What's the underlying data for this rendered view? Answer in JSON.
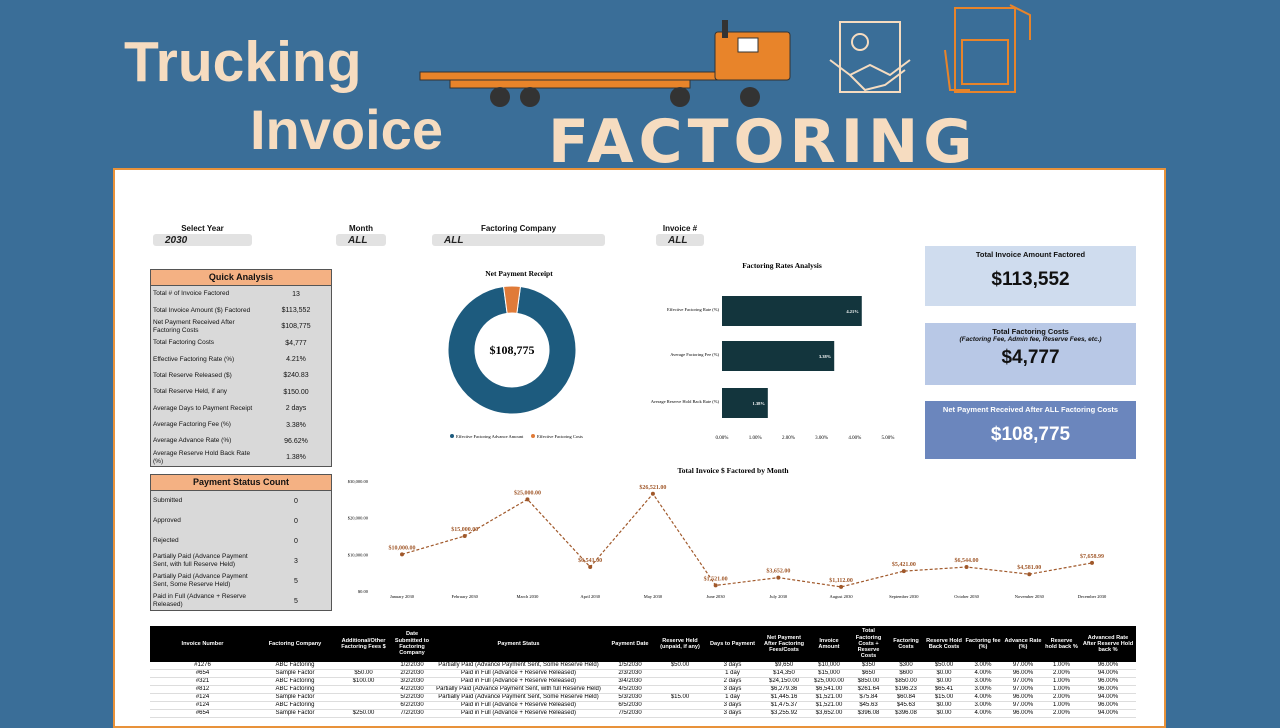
{
  "header": {
    "title_line1": "Trucking",
    "title_line2": "Invoice",
    "title_line3": "FACTORING"
  },
  "filters": [
    {
      "label": "Select Year",
      "value": "2030"
    },
    {
      "label": "Month",
      "value": "ALL"
    },
    {
      "label": "Factoring Company",
      "value": "ALL"
    },
    {
      "label": "Invoice #",
      "value": "ALL"
    }
  ],
  "quick_analysis": {
    "title": "Quick Analysis",
    "rows": [
      [
        "Total # of Invoice Factored",
        "13"
      ],
      [
        "Total Invoice Amount ($) Factored",
        "$113,552"
      ],
      [
        "Net Payment Received After Factoring Costs",
        "$108,775"
      ],
      [
        "Total Factoring Costs",
        "$4,777"
      ],
      [
        "Effective Factoring Rate (%)",
        "4.21%"
      ],
      [
        "Total Reserve Released ($)",
        "$240.83"
      ],
      [
        "Total Reserve Held, if any",
        "$150.00"
      ],
      [
        "Average Days to Payment Receipt",
        "2 days"
      ],
      [
        "Average Factoring Fee (%)",
        "3.38%"
      ],
      [
        "Average Advance Rate (%)",
        "96.62%"
      ],
      [
        "Average Reserve Hold Back Rate (%)",
        "1.38%"
      ]
    ]
  },
  "payment_status": {
    "title": "Payment Status Count",
    "rows": [
      [
        "Submitted",
        0
      ],
      [
        "Approved",
        0
      ],
      [
        "Rejected",
        0
      ],
      [
        "Partially Paid (Advance Payment Sent, with full Reserve Held)",
        3
      ],
      [
        "Partially Paid (Advance Payment Sent, Some Reserve Held)",
        5
      ],
      [
        "Paid in Full (Advance + Reserve Released)",
        5
      ]
    ]
  },
  "kpis": [
    {
      "title": "Total Invoice Amount Factored",
      "value": "$113,552"
    },
    {
      "title": "Total Factoring Costs",
      "subtitle": "(Factoring Fee, Admin fee, Reserve Fees, etc.)",
      "value": "$4,777"
    },
    {
      "title": "Net Payment Received After ALL Factoring Costs",
      "value": "$108,775"
    }
  ],
  "chart_data": [
    {
      "type": "pie",
      "title": "Net Payment Receipt",
      "center_label": "$108,775",
      "categories": [
        "Effective Factoring Advance Amount",
        "Effective Factoring Costs"
      ],
      "values": [
        108775,
        4777
      ],
      "colors": [
        "#1d5b7e",
        "#e07b39"
      ]
    },
    {
      "type": "bar",
      "title": "Factoring Rates Analysis",
      "categories": [
        "Effective Factoring Rate (%)",
        "Average Factoring Fee (%)",
        "Average Reserve Hold Back Rate (%)"
      ],
      "values": [
        4.21,
        3.38,
        1.38
      ],
      "value_labels": [
        "4.21%",
        "3.38%",
        "1.38%"
      ],
      "color": "#13353d",
      "xlim": [
        0,
        5
      ],
      "xticks": [
        {
          "value": 0,
          "label": "0.00%"
        },
        {
          "value": 1,
          "label": "1.00%"
        },
        {
          "value": 2,
          "label": "2.00%"
        },
        {
          "value": 3,
          "label": "3.00%"
        },
        {
          "value": 4,
          "label": "4.00%"
        },
        {
          "value": 5,
          "label": "5.00%"
        }
      ]
    },
    {
      "type": "line",
      "title": "Total Invoice $ Factored by Month",
      "categories": [
        "January 2030",
        "February 2030",
        "March 2030",
        "April 2030",
        "May 2030",
        "June 2030",
        "July 2030",
        "August 2030",
        "September 2030",
        "October 2030",
        "November 2030",
        "December 2030"
      ],
      "values": [
        10000,
        15000,
        25000,
        6541,
        26521,
        1521,
        3652,
        1112,
        5421,
        6544,
        4581,
        7658.99
      ],
      "value_labels": [
        "$10,000.00",
        "$15,000.00",
        "$25,000.00",
        "$6,541.00",
        "$26,521.00",
        "$1,521.00",
        "$3,652.00",
        "$1,112.00",
        "$5,421.00",
        "$6,544.00",
        "$4,581.00",
        "$7,658.99"
      ],
      "color": "#a0582a",
      "ylim": [
        0,
        30000
      ],
      "yticks": [
        {
          "value": 0,
          "label": "$0.00"
        },
        {
          "value": 10000,
          "label": "$10,000.00"
        },
        {
          "value": 20000,
          "label": "$20,000.00"
        },
        {
          "value": 30000,
          "label": "$30,000.00"
        }
      ]
    }
  ],
  "table": {
    "headers": [
      "Invoice Number",
      "Factoring Company",
      "Additional/Other Factoring Fees $",
      "Date Submitted to Factoring Company",
      "Payment Status",
      "Payment Date",
      "Reserve Held (unpaid, if any)",
      "Days to Payment",
      "Net Payment After Factoring Fees/Costs",
      "Invoice Amount",
      "Total Factoring Costs + Reserve Costs",
      "Factoring Costs",
      "Reserve Hold Back Costs",
      "Factoring fee (%)",
      "Advance Rate (%)",
      "Reserve hold back %",
      "Advanced Rate After Reserve Hold back %"
    ],
    "rows": [
      [
        "#1276",
        "ABC Factoring",
        null,
        "1/2/2030",
        "Partially Paid (Advance Payment Sent, Some Reserve Held)",
        "1/5/2030",
        "$50.00",
        "3 days",
        "$9,650",
        "$10,000",
        "$350",
        "$300",
        "$50.00",
        "3.00%",
        "97.00%",
        "1.00%",
        "96.00%"
      ],
      [
        "#654",
        "Sample Factor",
        "$50.00",
        "2/2/2030",
        "Paid in Full (Advance + Reserve Released)",
        "2/3/2030",
        null,
        "1 day",
        "$14,350",
        "$15,000",
        "$650",
        "$600",
        "$0.00",
        "4.00%",
        "96.00%",
        "2.00%",
        "94.00%"
      ],
      [
        "#321",
        "ABC Factoring",
        "$100.00",
        "3/2/2030",
        "Paid in Full (Advance + Reserve Released)",
        "3/4/2030",
        null,
        "2 days",
        "$24,150.00",
        "$25,000.00",
        "$850.00",
        "$850.00",
        "$0.00",
        "3.00%",
        "97.00%",
        "1.00%",
        "96.00%"
      ],
      [
        "#812",
        "ABC Factoring",
        null,
        "4/2/2030",
        "Partially Paid (Advance Payment Sent, with full Reserve Held)",
        "4/5/2030",
        null,
        "3 days",
        "$6,279.36",
        "$6,541.00",
        "$261.64",
        "$196.23",
        "$65.41",
        "3.00%",
        "97.00%",
        "1.00%",
        "96.00%"
      ],
      [
        "#124",
        "Sample Factor",
        null,
        "5/2/2030",
        "Partially Paid (Advance Payment Sent, Some Reserve Held)",
        "5/3/2030",
        "$15.00",
        "1 day",
        "$1,445.16",
        "$1,521.00",
        "$75.84",
        "$60.84",
        "$15.00",
        "4.00%",
        "96.00%",
        "2.00%",
        "94.00%"
      ],
      [
        "#124",
        "ABC Factoring",
        null,
        "6/2/2030",
        "Paid in Full (Advance + Reserve Released)",
        "6/5/2030",
        null,
        "3 days",
        "$1,475.37",
        "$1,521.00",
        "$45.63",
        "$45.63",
        "$0.00",
        "3.00%",
        "97.00%",
        "1.00%",
        "96.00%"
      ],
      [
        "#654",
        "Sample Factor",
        "$250.00",
        "7/2/2030",
        "Paid in Full (Advance + Reserve Released)",
        "7/5/2030",
        null,
        "3 days",
        "$3,255.92",
        "$3,652.00",
        "$396.08",
        "$396.08",
        "$0.00",
        "4.00%",
        "96.00%",
        "2.00%",
        "94.00%"
      ]
    ]
  }
}
